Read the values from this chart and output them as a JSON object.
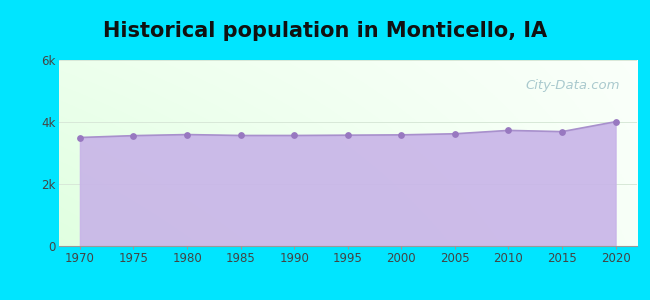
{
  "title": "Historical population in Monticello, IA",
  "years": [
    1970,
    1975,
    1980,
    1985,
    1990,
    1995,
    2000,
    2005,
    2010,
    2015,
    2020
  ],
  "population": [
    3500,
    3560,
    3595,
    3565,
    3565,
    3575,
    3585,
    3620,
    3729,
    3690,
    4010
  ],
  "xlim": [
    1968,
    2022
  ],
  "ylim": [
    0,
    6000
  ],
  "yticks": [
    0,
    2000,
    4000,
    6000
  ],
  "ytick_labels": [
    "0",
    "2k",
    "4k",
    "6k"
  ],
  "xticks": [
    1970,
    1975,
    1980,
    1985,
    1990,
    1995,
    2000,
    2005,
    2010,
    2015,
    2020
  ],
  "bg_outer": "#00e5ff",
  "fill_color": "#c8b4e8",
  "line_color": "#a890cc",
  "dot_color": "#9878c0",
  "title_fontsize": 15,
  "watermark_text": "City-Data.com",
  "watermark_color": "#90b8c0",
  "grid_color": "#d8e8d8",
  "tick_label_color": "#444444"
}
